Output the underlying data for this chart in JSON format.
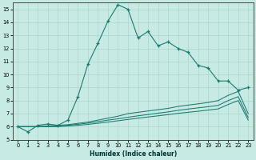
{
  "xlabel": "Humidex (Indice chaleur)",
  "xlim": [
    -0.5,
    23.5
  ],
  "ylim": [
    5,
    15.5
  ],
  "yticks": [
    5,
    6,
    7,
    8,
    9,
    10,
    11,
    12,
    13,
    14,
    15
  ],
  "xticks": [
    0,
    1,
    2,
    3,
    4,
    5,
    6,
    7,
    8,
    9,
    10,
    11,
    12,
    13,
    14,
    15,
    16,
    17,
    18,
    19,
    20,
    21,
    22,
    23
  ],
  "background_color": "#c8eae4",
  "grid_color": "#b0d8d0",
  "line_color": "#1a7a6e",
  "line1_x": [
    0,
    1,
    2,
    3,
    4,
    5,
    6,
    7,
    8,
    9,
    10,
    11,
    12,
    13,
    14,
    15,
    16,
    17,
    18,
    19,
    20,
    21,
    22,
    23
  ],
  "line1_y": [
    6.0,
    5.6,
    6.1,
    6.2,
    6.1,
    6.5,
    8.3,
    10.8,
    12.4,
    14.1,
    15.35,
    15.0,
    12.8,
    13.3,
    12.2,
    12.5,
    12.0,
    11.7,
    10.7,
    10.5,
    9.5,
    9.5,
    8.8,
    9.0
  ],
  "line2_x": [
    0,
    1,
    2,
    3,
    4,
    5,
    6,
    7,
    8,
    9,
    10,
    11,
    12,
    13,
    14,
    15,
    16,
    17,
    18,
    19,
    20,
    21,
    22,
    23
  ],
  "line2_y": [
    6.0,
    6.0,
    6.0,
    6.05,
    6.1,
    6.15,
    6.25,
    6.35,
    6.5,
    6.65,
    6.8,
    7.0,
    7.1,
    7.2,
    7.3,
    7.4,
    7.55,
    7.65,
    7.75,
    7.85,
    8.0,
    8.4,
    8.7,
    7.0
  ],
  "line3_x": [
    0,
    1,
    2,
    3,
    4,
    5,
    6,
    7,
    8,
    9,
    10,
    11,
    12,
    13,
    14,
    15,
    16,
    17,
    18,
    19,
    20,
    21,
    22,
    23
  ],
  "line3_y": [
    6.0,
    6.0,
    6.0,
    6.0,
    6.05,
    6.1,
    6.18,
    6.27,
    6.38,
    6.5,
    6.6,
    6.72,
    6.83,
    6.93,
    7.03,
    7.13,
    7.25,
    7.35,
    7.44,
    7.53,
    7.63,
    8.0,
    8.3,
    6.7
  ],
  "line4_x": [
    0,
    1,
    2,
    3,
    4,
    5,
    6,
    7,
    8,
    9,
    10,
    11,
    12,
    13,
    14,
    15,
    16,
    17,
    18,
    19,
    20,
    21,
    22,
    23
  ],
  "line4_y": [
    6.0,
    6.0,
    6.0,
    6.0,
    6.0,
    6.05,
    6.1,
    6.17,
    6.26,
    6.35,
    6.45,
    6.55,
    6.65,
    6.74,
    6.83,
    6.92,
    7.02,
    7.1,
    7.18,
    7.27,
    7.36,
    7.7,
    8.0,
    6.5
  ]
}
